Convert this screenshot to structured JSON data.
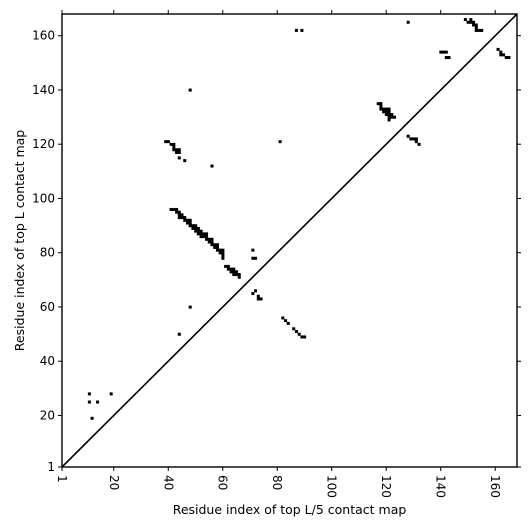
{
  "chart_data": {
    "type": "heatmap",
    "title": "",
    "xlabel": "Residue index of top L/5 contact map",
    "ylabel": "Residue index of top L contact map",
    "xlim": [
      1,
      168
    ],
    "ylim": [
      1,
      168
    ],
    "xticks": [
      1,
      20,
      40,
      60,
      80,
      100,
      120,
      140,
      160
    ],
    "yticks": [
      1,
      20,
      40,
      60,
      80,
      100,
      120,
      140,
      160
    ],
    "xtick_rotation": -90,
    "diagonal": true,
    "grid": false,
    "cell_color": "#000000",
    "contacts": [
      [
        11,
        28
      ],
      [
        11,
        25
      ],
      [
        14,
        25
      ],
      [
        12,
        19
      ],
      [
        19,
        28
      ],
      [
        39,
        121
      ],
      [
        40,
        121
      ],
      [
        41,
        120
      ],
      [
        42,
        120
      ],
      [
        42,
        119
      ],
      [
        42,
        118
      ],
      [
        43,
        118
      ],
      [
        43,
        117
      ],
      [
        44,
        118
      ],
      [
        44,
        117
      ],
      [
        44,
        115
      ],
      [
        46,
        114
      ],
      [
        41,
        96
      ],
      [
        42,
        96
      ],
      [
        43,
        96
      ],
      [
        43,
        95
      ],
      [
        44,
        95
      ],
      [
        44,
        94
      ],
      [
        44,
        93
      ],
      [
        45,
        94
      ],
      [
        45,
        93
      ],
      [
        46,
        93
      ],
      [
        46,
        92
      ],
      [
        47,
        92
      ],
      [
        47,
        91
      ],
      [
        48,
        92
      ],
      [
        48,
        91
      ],
      [
        48,
        90
      ],
      [
        49,
        90
      ],
      [
        49,
        89
      ],
      [
        50,
        90
      ],
      [
        50,
        89
      ],
      [
        50,
        88
      ],
      [
        51,
        89
      ],
      [
        51,
        88
      ],
      [
        51,
        87
      ],
      [
        52,
        88
      ],
      [
        52,
        87
      ],
      [
        52,
        86
      ],
      [
        53,
        87
      ],
      [
        53,
        86
      ],
      [
        54,
        87
      ],
      [
        54,
        86
      ],
      [
        54,
        85
      ],
      [
        55,
        85
      ],
      [
        55,
        84
      ],
      [
        56,
        85
      ],
      [
        56,
        84
      ],
      [
        56,
        83
      ],
      [
        57,
        83
      ],
      [
        57,
        82
      ],
      [
        58,
        83
      ],
      [
        58,
        82
      ],
      [
        58,
        81
      ],
      [
        59,
        81
      ],
      [
        59,
        80
      ],
      [
        60,
        81
      ],
      [
        60,
        80
      ],
      [
        60,
        79
      ],
      [
        60,
        78
      ],
      [
        61,
        75
      ],
      [
        62,
        75
      ],
      [
        62,
        74
      ],
      [
        63,
        74
      ],
      [
        63,
        73
      ],
      [
        64,
        74
      ],
      [
        64,
        73
      ],
      [
        64,
        72
      ],
      [
        65,
        73
      ],
      [
        65,
        72
      ],
      [
        66,
        72
      ],
      [
        66,
        71
      ],
      [
        71,
        81
      ],
      [
        71,
        78
      ],
      [
        72,
        78
      ],
      [
        71,
        65
      ],
      [
        72,
        66
      ],
      [
        73,
        64
      ],
      [
        73,
        63
      ],
      [
        74,
        63
      ],
      [
        48,
        140
      ],
      [
        56,
        112
      ],
      [
        81,
        121
      ],
      [
        48,
        60
      ],
      [
        44,
        50
      ],
      [
        82,
        56
      ],
      [
        83,
        55
      ],
      [
        84,
        54
      ],
      [
        86,
        52
      ],
      [
        87,
        51
      ],
      [
        88,
        50
      ],
      [
        89,
        49
      ],
      [
        90,
        49
      ],
      [
        87,
        162
      ],
      [
        89,
        162
      ],
      [
        117,
        135
      ],
      [
        118,
        135
      ],
      [
        118,
        134
      ],
      [
        118,
        133
      ],
      [
        119,
        133
      ],
      [
        119,
        132
      ],
      [
        120,
        133
      ],
      [
        120,
        132
      ],
      [
        120,
        131
      ],
      [
        121,
        133
      ],
      [
        121,
        132
      ],
      [
        121,
        131
      ],
      [
        121,
        130
      ],
      [
        121,
        129
      ],
      [
        122,
        131
      ],
      [
        122,
        130
      ],
      [
        123,
        130
      ],
      [
        128,
        123
      ],
      [
        129,
        122
      ],
      [
        130,
        122
      ],
      [
        131,
        122
      ],
      [
        131,
        121
      ],
      [
        132,
        120
      ],
      [
        128,
        165
      ],
      [
        140,
        154
      ],
      [
        141,
        154
      ],
      [
        142,
        154
      ],
      [
        142,
        152
      ],
      [
        143,
        152
      ],
      [
        149,
        166
      ],
      [
        150,
        165
      ],
      [
        151,
        166
      ],
      [
        151,
        165
      ],
      [
        152,
        165
      ],
      [
        152,
        164
      ],
      [
        153,
        164
      ],
      [
        153,
        163
      ],
      [
        153,
        162
      ],
      [
        154,
        162
      ],
      [
        155,
        162
      ],
      [
        161,
        155
      ],
      [
        162,
        154
      ],
      [
        162,
        153
      ],
      [
        163,
        153
      ],
      [
        164,
        152
      ],
      [
        165,
        152
      ]
    ]
  }
}
